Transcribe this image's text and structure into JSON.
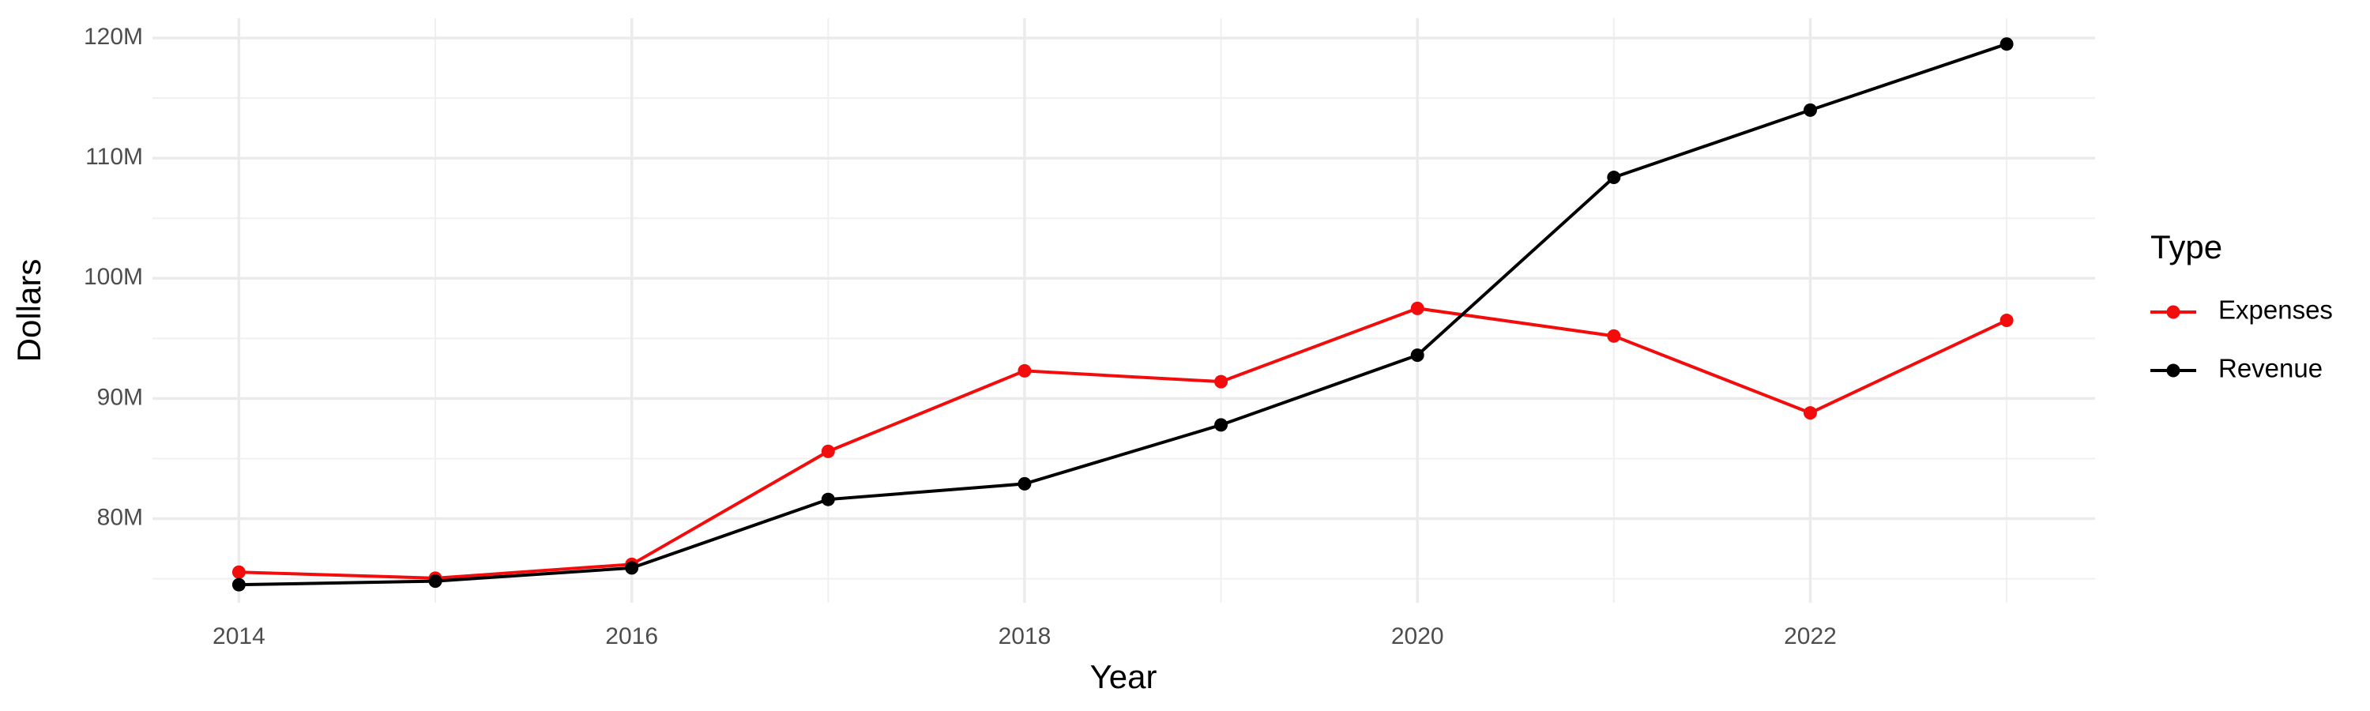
{
  "chart_data": {
    "type": "line",
    "x_label": "Year",
    "y_label": "Dollars",
    "legend_title": "Type",
    "x": [
      2014,
      2015,
      2016,
      2017,
      2018,
      2019,
      2020,
      2021,
      2022,
      2023
    ],
    "series": [
      {
        "name": "Expenses",
        "color": "#f20c0c",
        "values": [
          75550000,
          75050000,
          76200000,
          85600000,
          92300000,
          91400000,
          97500000,
          95200000,
          88800000,
          96500000
        ]
      },
      {
        "name": "Revenue",
        "color": "#000000",
        "values": [
          74500000,
          74800000,
          75900000,
          81600000,
          82900000,
          87800000,
          93600000,
          108400000,
          114000000,
          119500000
        ]
      }
    ],
    "xlim": [
      2013.56,
      2023.45
    ],
    "xticks": [
      2014,
      2016,
      2018,
      2020,
      2022
    ],
    "ylim": [
      73000000,
      121650000
    ],
    "yticks": [
      {
        "value": 80000000,
        "label": "80M"
      },
      {
        "value": 90000000,
        "label": "90M"
      },
      {
        "value": 100000000,
        "label": "100M"
      },
      {
        "value": 110000000,
        "label": "110M"
      },
      {
        "value": 120000000,
        "label": "120M"
      }
    ],
    "grid": true,
    "legend": "right"
  }
}
